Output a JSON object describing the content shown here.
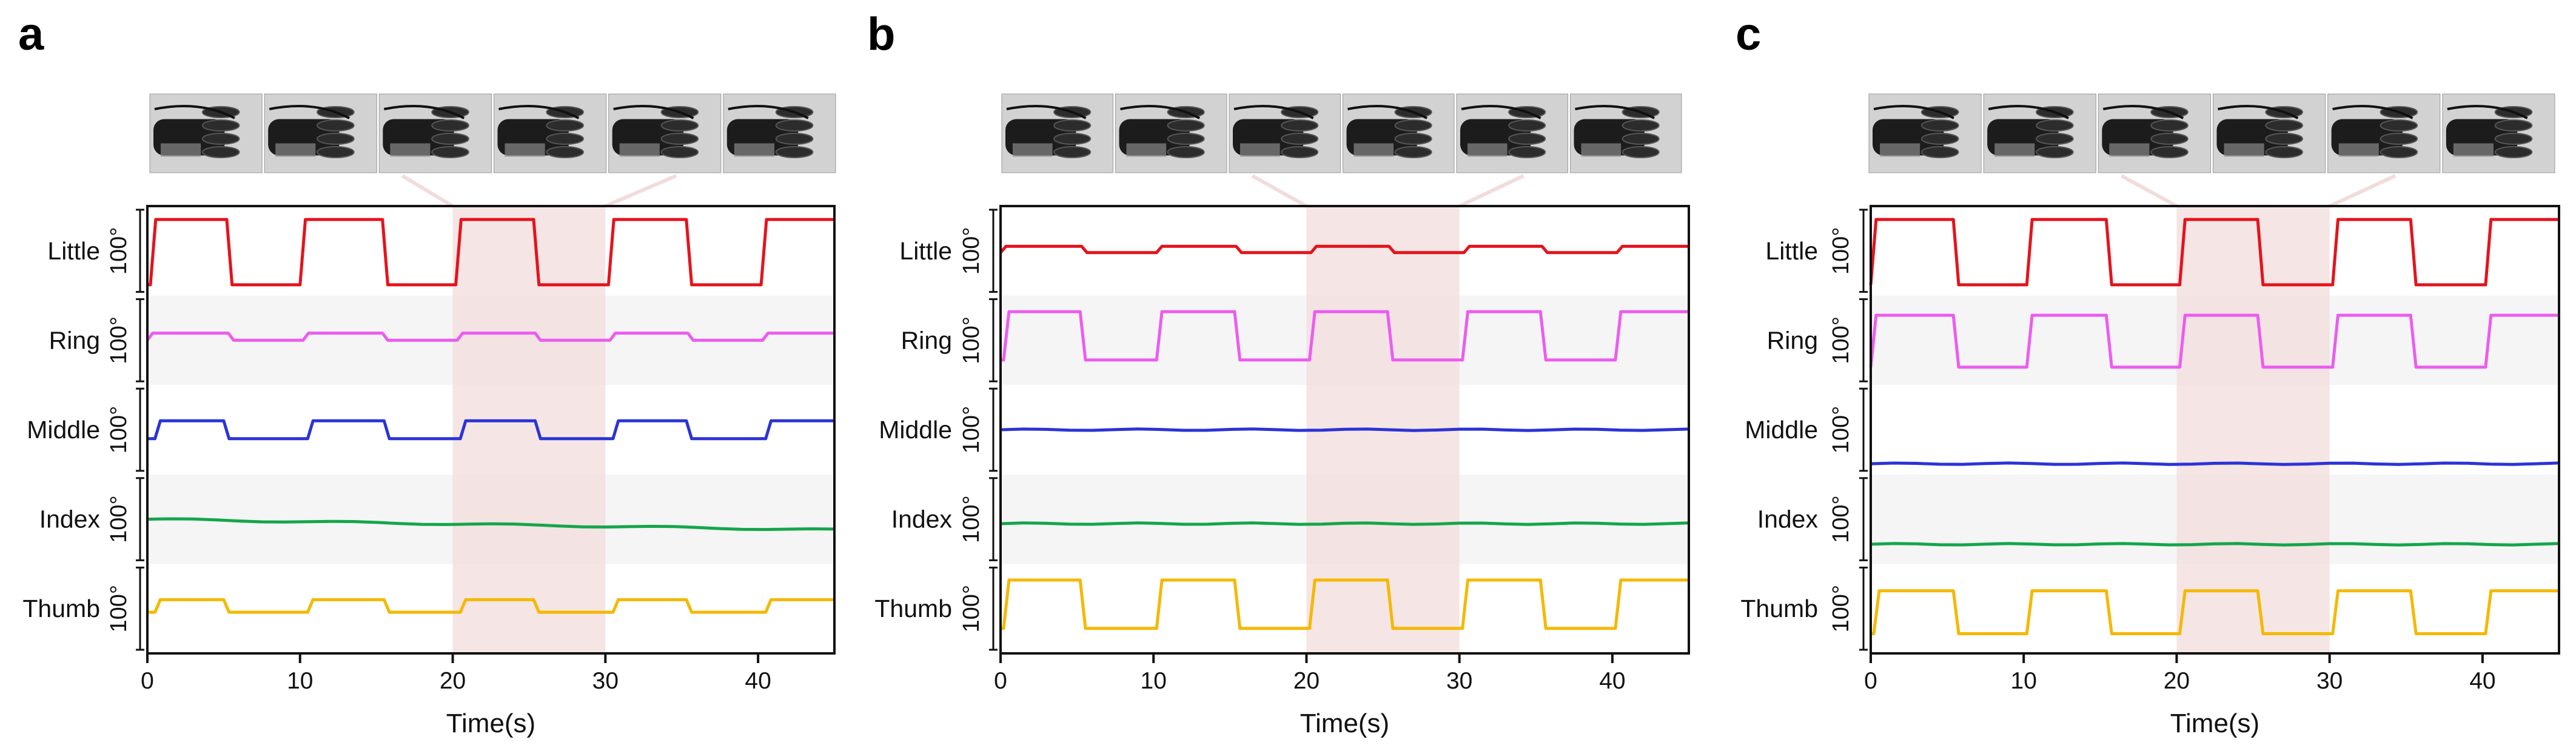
{
  "chart_data": [
    {
      "panel": "a",
      "type": "line",
      "xlabel": "Time(s)",
      "xlim": [
        0,
        45
      ],
      "xticks": [
        0,
        10,
        20,
        30,
        40
      ],
      "highlight": [
        20,
        30
      ],
      "scale_bar": "100°",
      "series": [
        {
          "name": "Little",
          "color": "#e5131b",
          "pattern": "square",
          "level_high": 0.85,
          "level_low": 0.12,
          "x_up": [
            0.2,
            10,
            20.2,
            30.2,
            40.2
          ],
          "x_down": [
            5.2,
            15.4,
            25.3,
            35.3
          ]
        },
        {
          "name": "Ring",
          "color": "#ec5cf0",
          "pattern": "square",
          "level_high": 0.58,
          "level_low": 0.5,
          "x_up": [
            0,
            10.2,
            20.3,
            30.3,
            40.3
          ],
          "x_down": [
            5.3,
            15.4,
            25.4,
            35.4
          ]
        },
        {
          "name": "Middle",
          "color": "#2b33d6",
          "pattern": "square",
          "level_high": 0.6,
          "level_low": 0.4,
          "x_up": [
            0.5,
            10.5,
            20.5,
            30.5,
            40.5
          ],
          "x_down": [
            5,
            15.5,
            25.4,
            35.3
          ]
        },
        {
          "name": "Index",
          "color": "#14a64a",
          "pattern": "drift",
          "level_high": 0.5,
          "level_low": 0.38
        },
        {
          "name": "Thumb",
          "color": "#f5b800",
          "pattern": "square",
          "level_high": 0.6,
          "level_low": 0.46,
          "x_up": [
            0.5,
            10.5,
            20.5,
            30.5,
            40.5
          ],
          "x_down": [
            5,
            15.5,
            25.3,
            35.3
          ]
        }
      ]
    },
    {
      "panel": "b",
      "type": "line",
      "xlabel": "Time(s)",
      "xlim": [
        0,
        45
      ],
      "xticks": [
        0,
        10,
        20,
        30,
        40
      ],
      "highlight": [
        20,
        30
      ],
      "scale_bar": "100°",
      "series": [
        {
          "name": "Little",
          "color": "#e5131b",
          "pattern": "square",
          "level_high": 0.55,
          "level_low": 0.48,
          "x_up": [
            0,
            10.2,
            20.3,
            30.3,
            40.3
          ],
          "x_down": [
            5.3,
            15.4,
            25.4,
            35.4
          ]
        },
        {
          "name": "Ring",
          "color": "#ec5cf0",
          "pattern": "square",
          "level_high": 0.82,
          "level_low": 0.28,
          "x_up": [
            0.2,
            10.2,
            20.2,
            30.2,
            40.2
          ],
          "x_down": [
            5.2,
            15.3,
            25.3,
            35.3
          ]
        },
        {
          "name": "Middle",
          "color": "#2b33d6",
          "pattern": "flat",
          "level_high": 0.5,
          "level_low": 0.5
        },
        {
          "name": "Index",
          "color": "#14a64a",
          "pattern": "flat",
          "level_high": 0.45,
          "level_low": 0.45
        },
        {
          "name": "Thumb",
          "color": "#f5b800",
          "pattern": "square",
          "level_high": 0.82,
          "level_low": 0.28,
          "x_up": [
            0.2,
            10.2,
            20.2,
            30.2,
            40.2
          ],
          "x_down": [
            5.2,
            15.3,
            25.3,
            35.3
          ]
        }
      ]
    },
    {
      "panel": "c",
      "type": "line",
      "xlabel": "Time(s)",
      "xlim": [
        0,
        45
      ],
      "xticks": [
        0,
        10,
        20,
        30,
        40
      ],
      "highlight": [
        20,
        30
      ],
      "scale_bar": "100°",
      "series": [
        {
          "name": "Little",
          "color": "#e5131b",
          "pattern": "square",
          "level_high": 0.85,
          "level_low": 0.12,
          "x_up": [
            0,
            10.2,
            20.2,
            30.2,
            40.2
          ],
          "x_down": [
            5.4,
            15.4,
            25.3,
            35.3
          ]
        },
        {
          "name": "Ring",
          "color": "#ec5cf0",
          "pattern": "square",
          "level_high": 0.78,
          "level_low": 0.2,
          "x_up": [
            0,
            10.2,
            20.2,
            30.2,
            40.2
          ],
          "x_down": [
            5.4,
            15.4,
            25.3,
            35.3
          ]
        },
        {
          "name": "Middle",
          "color": "#2b33d6",
          "pattern": "flat",
          "level_high": 0.12,
          "level_low": 0.12
        },
        {
          "name": "Index",
          "color": "#14a64a",
          "pattern": "flat",
          "level_high": 0.22,
          "level_low": 0.22
        },
        {
          "name": "Thumb",
          "color": "#f5b800",
          "pattern": "square",
          "level_high": 0.7,
          "level_low": 0.22,
          "x_up": [
            0.2,
            10.2,
            20.2,
            30.2,
            40.2
          ],
          "x_down": [
            5.4,
            15.4,
            25.3,
            35.3
          ]
        }
      ]
    }
  ],
  "photo_strip_frames": 6,
  "colors": {
    "highlight": "#f1dcdc",
    "band_shade": "#f5f5f5",
    "photo_background": "#d2d2d2",
    "photo_device": "#1c1c1c"
  }
}
